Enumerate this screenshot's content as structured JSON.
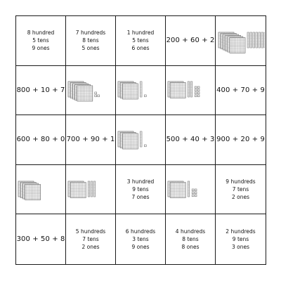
{
  "cells": [
    {
      "type": "text",
      "lines": [
        "8 hundred",
        "5 tens",
        "9 ones"
      ]
    },
    {
      "type": "text",
      "lines": [
        "7 hundreds",
        "8 tens",
        "5 ones"
      ]
    },
    {
      "type": "text",
      "lines": [
        "1 hundred",
        "5 tens",
        "6 ones"
      ]
    },
    {
      "type": "expr",
      "text": "200 + 60 + 2"
    },
    {
      "type": "blocks",
      "hundreds": 6,
      "tens": 7,
      "ones": 1
    },
    {
      "type": "expr",
      "text": "800 + 10 + 7"
    },
    {
      "type": "blocks",
      "hundreds": 5,
      "tens": 0,
      "ones": 3
    },
    {
      "type": "blocks",
      "hundreds": 3,
      "tens": 1,
      "ones": 1
    },
    {
      "type": "blocks",
      "hundreds": 2,
      "tens": 2,
      "ones": 8
    },
    {
      "type": "expr",
      "text": "400 + 70 + 9"
    },
    {
      "type": "expr",
      "text": "600 + 80 + 0"
    },
    {
      "type": "expr",
      "text": "700 + 90 + 1"
    },
    {
      "type": "blocks",
      "hundreds": 3,
      "tens": 1,
      "ones": 1
    },
    {
      "type": "expr",
      "text": "500 + 40 + 3"
    },
    {
      "type": "expr",
      "text": "900 + 20 + 9"
    },
    {
      "type": "blocks",
      "hundreds": 4,
      "tens": 0,
      "ones": 0
    },
    {
      "type": "blocks",
      "hundreds": 2,
      "tens": 3,
      "ones": 0
    },
    {
      "type": "text",
      "lines": [
        "3 hundred",
        "9 tens",
        "7 ones"
      ]
    },
    {
      "type": "blocks",
      "hundreds": 2,
      "tens": 1,
      "ones": 6
    },
    {
      "type": "text",
      "lines": [
        "9 hundreds",
        "7 tens",
        "2 ones"
      ]
    },
    {
      "type": "expr",
      "text": "300 + 50 + 8"
    },
    {
      "type": "text",
      "lines": [
        "5 hundreds",
        "7 tens",
        "2 ones"
      ]
    },
    {
      "type": "text",
      "lines": [
        "6 hundreds",
        "3 tens",
        "9 ones"
      ]
    },
    {
      "type": "text",
      "lines": [
        "4 hundreds",
        "8 tens",
        "8 ones"
      ]
    },
    {
      "type": "text",
      "lines": [
        "2 hundreds",
        "9 tens",
        "3 ones"
      ]
    }
  ],
  "colors": {
    "line": "#1a1a1a",
    "block_stroke": "#555555",
    "block_fill": "#ffffff"
  }
}
